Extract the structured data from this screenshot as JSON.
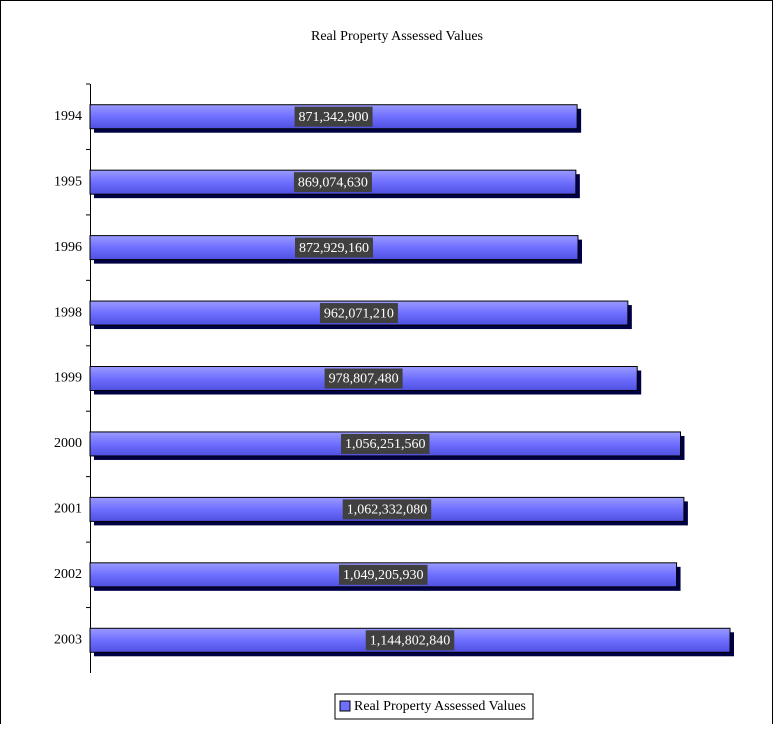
{
  "chart_data": {
    "type": "bar",
    "orientation": "horizontal",
    "title": "Real Property Assessed Values",
    "categories": [
      "1994",
      "1995",
      "1996",
      "1998",
      "1999",
      "2000",
      "2001",
      "2002",
      "2003"
    ],
    "series": [
      {
        "name": "Real Property Assessed Values",
        "color": "#6f6fff",
        "values": [
          871342900,
          869074630,
          872929160,
          962071210,
          978807480,
          1056251560,
          1062332080,
          1049205930,
          1144802840
        ],
        "value_labels": [
          "871,342,900",
          "869,074,630",
          "872,929,160",
          "962,071,210",
          "978,807,480",
          "1,056,251,560",
          "1,062,332,080",
          "1,049,205,930",
          "1,144,802,840"
        ]
      }
    ],
    "legend": "bottom"
  }
}
